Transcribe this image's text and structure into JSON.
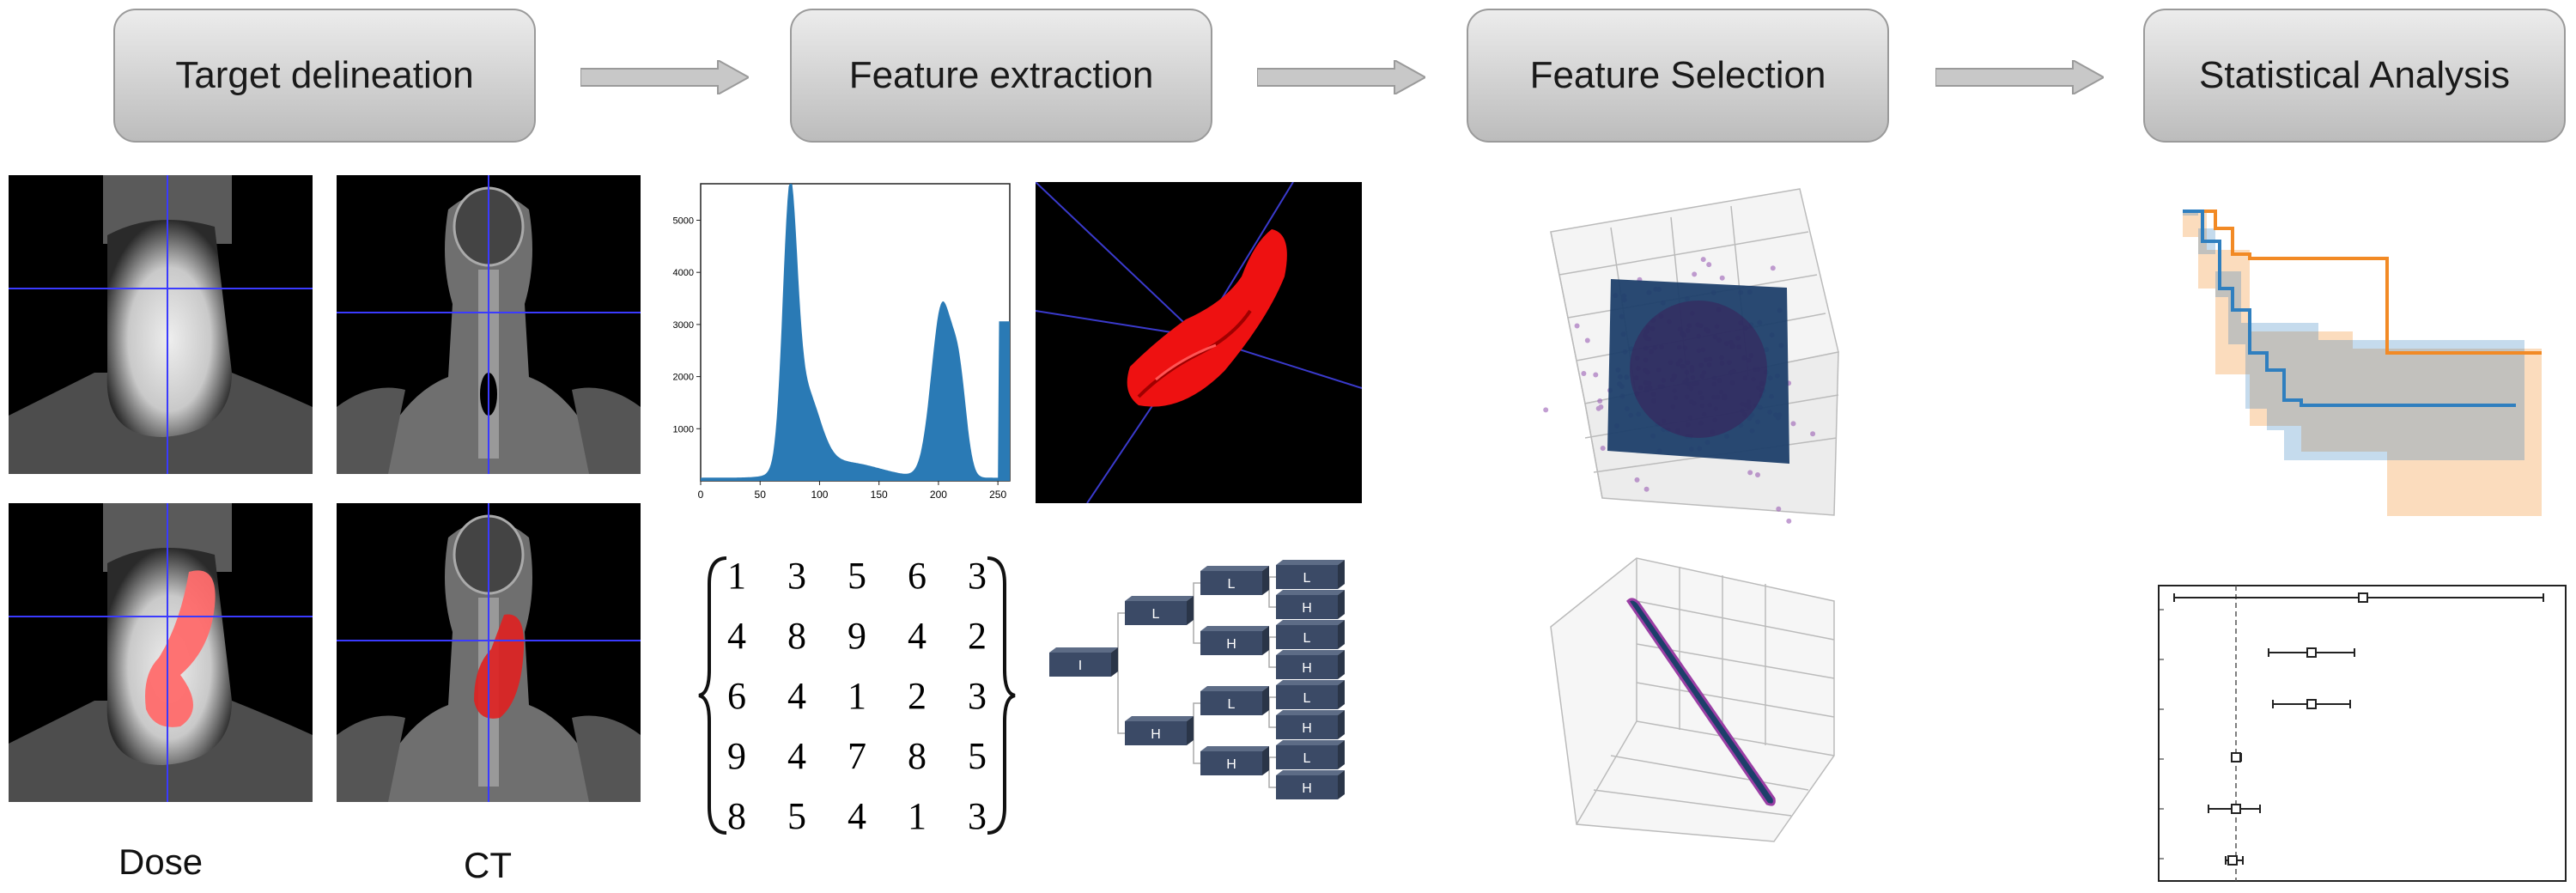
{
  "steps": [
    {
      "label": "Target delineation"
    },
    {
      "label": "Feature extraction"
    },
    {
      "label": "Feature Selection"
    },
    {
      "label": "Statistical Analysis"
    }
  ],
  "captions": {
    "dose": "Dose",
    "ct": "CT"
  },
  "histogram": {
    "x_ticks": [
      "0",
      "50",
      "100",
      "150",
      "200",
      "250"
    ],
    "y_ticks": [
      "1000",
      "2000",
      "3000",
      "4000",
      "5000"
    ],
    "color": "#2a7ab5"
  },
  "matrix": [
    [
      "1",
      "3",
      "5",
      "6",
      "3"
    ],
    [
      "4",
      "8",
      "9",
      "4",
      "2"
    ],
    [
      "6",
      "4",
      "1",
      "2",
      "3"
    ],
    [
      "9",
      "4",
      "7",
      "8",
      "5"
    ],
    [
      "8",
      "5",
      "4",
      "1",
      "3"
    ]
  ],
  "wavelet_tree": {
    "root": "I",
    "level1": [
      "L",
      "H"
    ],
    "level2": [
      "L",
      "H",
      "L",
      "H"
    ],
    "level3": [
      "L",
      "H",
      "L",
      "H",
      "L",
      "H",
      "L",
      "H"
    ]
  },
  "colors": {
    "km_blue": "#2f7fbf",
    "km_orange": "#f28a25",
    "mask_red": "#ff6b6b",
    "box_navy": "#3b4a66"
  }
}
